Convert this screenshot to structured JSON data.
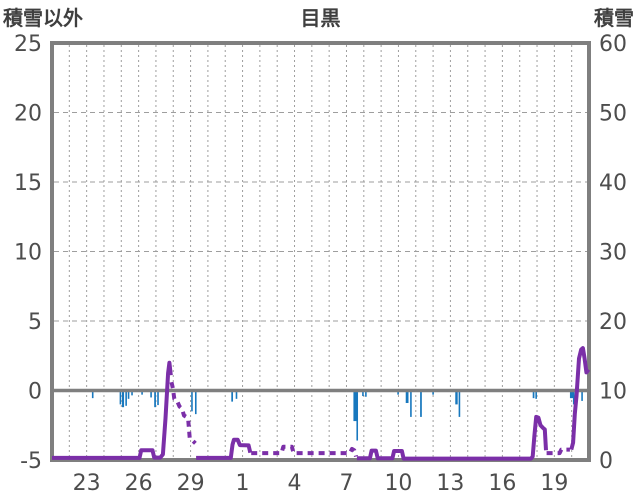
{
  "header": {
    "left_axis_title": "積雪以外",
    "chart_title": "目黒",
    "right_axis_title": "積雪"
  },
  "colors": {
    "snow_line": "#7B2FA8",
    "precip_bar": "#1878BE",
    "axis": "#7F7F7F",
    "grid": "#9E9E9E",
    "text": "#4D4D4D"
  },
  "chart_data": {
    "type": "line",
    "title": "目黒",
    "left_axis": {
      "title": "積雪以外",
      "min": -5,
      "max": 25,
      "ticks": [
        25,
        20,
        15,
        10,
        5,
        0,
        -5
      ]
    },
    "right_axis": {
      "title": "積雪",
      "min": 0,
      "max": 60,
      "ticks": [
        60,
        50,
        40,
        30,
        20,
        10,
        0
      ]
    },
    "x_axis": {
      "max_day": 31,
      "gridline_every_days": 1,
      "tick_days": [
        2,
        5,
        8,
        11,
        14,
        17,
        20,
        23,
        26,
        29
      ],
      "tick_labels": [
        "23",
        "26",
        "29",
        "1",
        "4",
        "7",
        "10",
        "13",
        "16",
        "19"
      ]
    },
    "zero_line_left_value": 0,
    "series": [
      {
        "name": "積雪以外",
        "type": "bar",
        "axis": "left",
        "baseline": 0,
        "direction": "down",
        "points_day_depth_width": [
          [
            2.35,
            0.55,
            0.09
          ],
          [
            3.95,
            1.0,
            0.09
          ],
          [
            4.1,
            1.2,
            0.12
          ],
          [
            4.28,
            1.1,
            0.09
          ],
          [
            4.42,
            0.6,
            0.09
          ],
          [
            4.62,
            0.35,
            0.09
          ],
          [
            5.2,
            0.3,
            0.09
          ],
          [
            5.72,
            0.5,
            0.09
          ],
          [
            5.95,
            1.2,
            0.1
          ],
          [
            6.12,
            1.05,
            0.09
          ],
          [
            8.08,
            1.5,
            0.09
          ],
          [
            8.3,
            1.7,
            0.09
          ],
          [
            10.4,
            0.8,
            0.1
          ],
          [
            10.65,
            0.6,
            0.09
          ],
          [
            17.5,
            2.2,
            0.2
          ],
          [
            17.62,
            3.6,
            0.09
          ],
          [
            17.95,
            0.4,
            0.09
          ],
          [
            18.12,
            0.45,
            0.09
          ],
          [
            19.98,
            0.3,
            0.09
          ],
          [
            20.5,
            0.9,
            0.16
          ],
          [
            20.72,
            1.9,
            0.09
          ],
          [
            21.3,
            1.9,
            0.1
          ],
          [
            22.0,
            0.3,
            0.08
          ],
          [
            23.35,
            1.0,
            0.14
          ],
          [
            23.52,
            1.9,
            0.09
          ],
          [
            27.8,
            0.55,
            0.1
          ],
          [
            27.95,
            0.6,
            0.09
          ],
          [
            30.0,
            0.55,
            0.2
          ],
          [
            30.12,
            1.0,
            0.09
          ],
          [
            30.6,
            0.75,
            0.09
          ]
        ]
      },
      {
        "name": "積雪",
        "type": "line",
        "axis": "right",
        "solid_segments": [
          [
            [
              0,
              0.3
            ],
            [
              5.05,
              0.3
            ],
            [
              5.15,
              1.4
            ],
            [
              5.8,
              1.4
            ],
            [
              5.9,
              0.35
            ],
            [
              6.25,
              0.35
            ],
            [
              6.4,
              0.8
            ],
            [
              6.55,
              6.0
            ],
            [
              6.7,
              12.5
            ],
            [
              6.78,
              14.0
            ],
            [
              6.86,
              12.2
            ]
          ],
          [
            [
              8.32,
              0.3
            ],
            [
              10.32,
              0.3
            ],
            [
              10.42,
              2.2
            ],
            [
              10.5,
              2.9
            ],
            [
              10.72,
              2.9
            ],
            [
              10.85,
              2.15
            ],
            [
              11.35,
              2.1
            ],
            [
              11.45,
              1.05
            ]
          ],
          [
            [
              17.6,
              0.25
            ],
            [
              18.35,
              0.25
            ],
            [
              18.45,
              1.35
            ],
            [
              18.7,
              1.35
            ],
            [
              18.8,
              0.25
            ],
            [
              19.65,
              0.25
            ],
            [
              19.75,
              1.3
            ],
            [
              20.2,
              1.3
            ],
            [
              20.3,
              0.2
            ],
            [
              27.65,
              0.2
            ],
            [
              27.75,
              0.5
            ],
            [
              27.85,
              3.5
            ],
            [
              27.95,
              6.2
            ],
            [
              28.08,
              6.1
            ],
            [
              28.2,
              5.0
            ],
            [
              28.35,
              4.6
            ],
            [
              28.45,
              4.4
            ],
            [
              28.52,
              1.4
            ]
          ],
          [
            [
              29.98,
              1.5
            ],
            [
              30.08,
              2.5
            ],
            [
              30.18,
              6.6
            ],
            [
              30.28,
              9.2
            ],
            [
              30.42,
              14.6
            ],
            [
              30.55,
              15.9
            ],
            [
              30.65,
              16.1
            ],
            [
              30.75,
              14.5
            ],
            [
              30.85,
              12.6
            ],
            [
              30.97,
              13.0
            ]
          ]
        ],
        "dashed_segments": [
          [
            [
              6.9,
              11.2
            ],
            [
              6.98,
              10.3
            ],
            [
              7.06,
              8.8
            ],
            [
              7.22,
              8.5
            ],
            [
              7.36,
              7.7
            ],
            [
              7.5,
              7.4
            ],
            [
              7.62,
              6.4
            ],
            [
              7.76,
              6.2
            ],
            [
              7.86,
              5.8
            ],
            [
              7.95,
              3.2
            ],
            [
              8.15,
              2.7
            ],
            [
              8.28,
              2.4
            ]
          ],
          [
            [
              11.5,
              1.0
            ],
            [
              13.25,
              1.0
            ],
            [
              13.35,
              1.9
            ],
            [
              13.85,
              1.9
            ],
            [
              13.95,
              1.0
            ],
            [
              17.2,
              1.0
            ],
            [
              17.32,
              1.6
            ],
            [
              17.45,
              1.4
            ],
            [
              17.55,
              0.5
            ]
          ],
          [
            [
              28.55,
              1.0
            ],
            [
              29.3,
              1.0
            ],
            [
              29.4,
              1.5
            ],
            [
              29.9,
              1.5
            ]
          ]
        ]
      }
    ]
  }
}
